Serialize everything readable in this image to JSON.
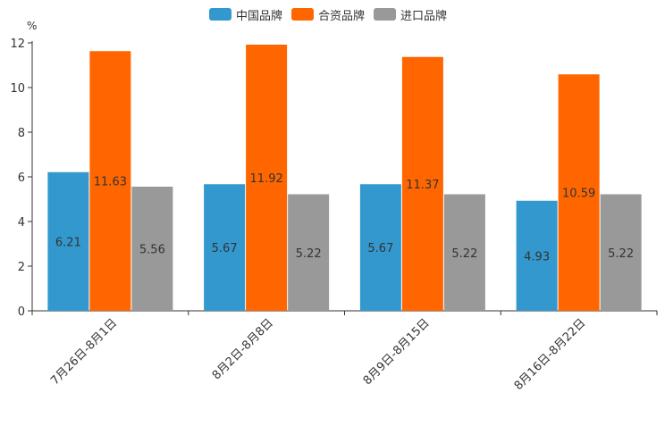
{
  "chart_data": {
    "type": "bar",
    "unit_label": "%",
    "categories": [
      "7月26日-8月1日",
      "8月2日-8月8日",
      "8月9日-8月15日",
      "8月16日-8月22日"
    ],
    "series": [
      {
        "name": "中国品牌",
        "color": "#3398CE",
        "values": [
          6.21,
          5.67,
          5.67,
          4.93
        ]
      },
      {
        "name": "合资品牌",
        "color": "#FF6600",
        "values": [
          11.63,
          11.92,
          11.37,
          10.59
        ]
      },
      {
        "name": "进口品牌",
        "color": "#999999",
        "values": [
          5.56,
          5.22,
          5.22,
          5.22
        ]
      }
    ],
    "ylim": [
      0,
      12
    ],
    "yticks": [
      0,
      2,
      4,
      6,
      8,
      10,
      12
    ],
    "legend_position": "top-center",
    "grid": false
  }
}
